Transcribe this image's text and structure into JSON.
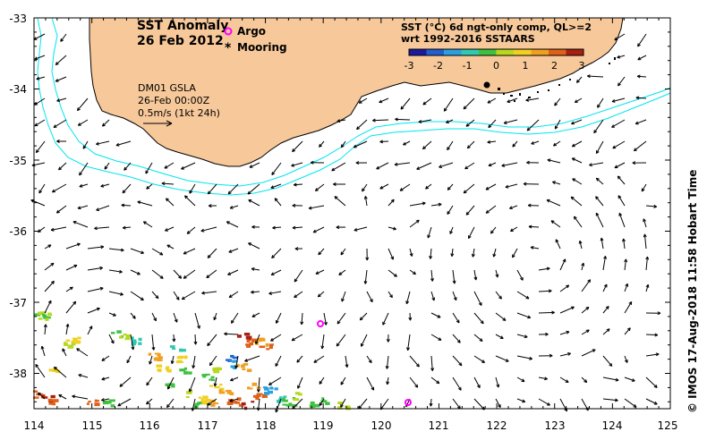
{
  "map": {
    "title": "SST Anomaly",
    "date": "26 Feb 2012",
    "x_ticks": [
      "114",
      "115",
      "116",
      "117",
      "118",
      "119",
      "120",
      "121",
      "122",
      "123",
      "124",
      "125"
    ],
    "y_ticks": [
      "-33",
      "-34",
      "-35",
      "-36",
      "-37",
      "-38"
    ],
    "lon_range": [
      114,
      125
    ],
    "lat_range": [
      -38.5,
      -33
    ]
  },
  "legend": {
    "argo_label": "Argo",
    "mooring_label": "Mooring",
    "argo_color": "#ff00ff",
    "mooring_color": "#000000"
  },
  "velocity": {
    "line1": "DM01 GSLA",
    "line2": "26-Feb 00:00Z",
    "line3": "0.5m/s (1kt 24h)"
  },
  "colorbar": {
    "title1": "SST (°C) 6d ngt-only comp, QL>=2",
    "title2": "wrt 1992-2016 SSTAARS",
    "ticks": [
      "-3",
      "-2",
      "-1",
      "0",
      "1",
      "2",
      "3"
    ],
    "colors": [
      "#1a1aa0",
      "#1f5fd0",
      "#2aa0e0",
      "#30c8b0",
      "#40c040",
      "#b8d820",
      "#f0d020",
      "#f0a020",
      "#e06018",
      "#a82010"
    ]
  },
  "colors": {
    "land": "#f6c89a",
    "contour": "#00e5ee",
    "background": "#ffffff"
  },
  "credit": "© IMOS 17-Aug-2018 11:58 Hobart Time"
}
